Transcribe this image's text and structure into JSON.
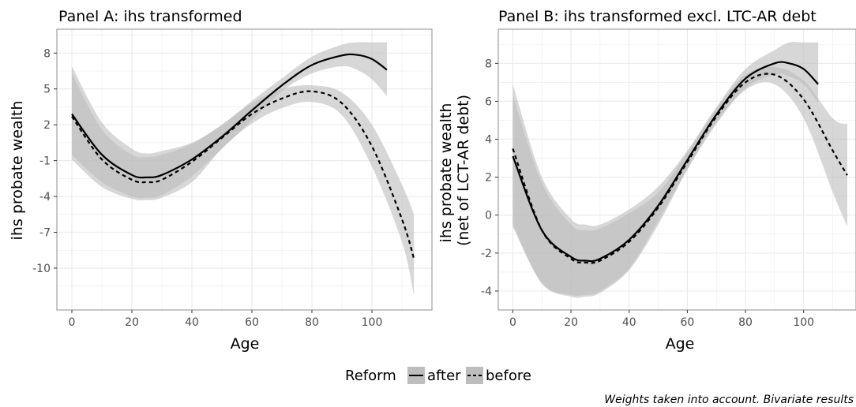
{
  "chart_data": [
    {
      "type": "line",
      "title": "Panel A: ihs transformed",
      "xlabel": "Age",
      "ylabel": "ihs probate wealth",
      "xlim": [
        -5,
        120
      ],
      "ylim": [
        -13.5,
        10
      ],
      "x_ticks": [
        0,
        20,
        40,
        60,
        80,
        100
      ],
      "x_tick_labels": [
        "0",
        "20",
        "40",
        "60",
        "80",
        "100"
      ],
      "y_ticks": [
        8,
        5,
        2,
        -1,
        -4,
        -7,
        -10
      ],
      "y_tick_labels": [
        "8",
        "5",
        "2",
        "-1",
        "-4",
        "-7",
        "-10"
      ],
      "grid": true,
      "series": [
        {
          "name": "after",
          "line_style": "solid",
          "x": [
            0,
            10,
            20,
            25,
            30,
            40,
            50,
            60,
            70,
            80,
            90,
            95,
            100,
            105
          ],
          "y": [
            2.9,
            -0.5,
            -2.2,
            -2.4,
            -2.2,
            -0.9,
            1.0,
            3.2,
            5.3,
            7.0,
            7.8,
            7.85,
            7.5,
            6.6
          ],
          "ci_lower": [
            -0.5,
            -2.8,
            -4.0,
            -4.1,
            -3.9,
            -2.3,
            0.0,
            2.4,
            4.8,
            6.3,
            6.9,
            6.6,
            5.8,
            4.4
          ],
          "ci_upper": [
            6.9,
            2.2,
            0.0,
            -0.4,
            -0.2,
            0.5,
            2.0,
            4.0,
            5.9,
            7.7,
            8.7,
            8.9,
            8.9,
            8.9
          ]
        },
        {
          "name": "before",
          "line_style": "dashed",
          "x": [
            0,
            10,
            20,
            25,
            30,
            40,
            50,
            60,
            70,
            80,
            90,
            100,
            110,
            114
          ],
          "y": [
            2.7,
            -0.9,
            -2.6,
            -2.8,
            -2.6,
            -1.1,
            0.9,
            2.9,
            4.2,
            4.8,
            3.8,
            0.2,
            -5.9,
            -9.2
          ],
          "ci_lower": [
            -0.9,
            -3.2,
            -4.2,
            -4.3,
            -4.1,
            -2.8,
            0.0,
            2.1,
            3.4,
            3.9,
            2.8,
            -1.5,
            -7.8,
            -12.3
          ],
          "ci_upper": [
            6.3,
            1.6,
            -0.5,
            -0.7,
            -0.5,
            0.4,
            2.0,
            3.8,
            5.0,
            5.3,
            4.7,
            2.0,
            -3.0,
            -5.5
          ]
        }
      ]
    },
    {
      "type": "line",
      "title": "Panel B: ihs transformed excl. LTC-AR debt",
      "xlabel": "Age",
      "ylabel": "ihs probate wealth\n(net of LCT-AR debt)",
      "ylabel_lines": [
        "ihs probate wealth",
        "(net of LCT-AR debt)"
      ],
      "xlim": [
        -5,
        118
      ],
      "ylim": [
        -5,
        9.8
      ],
      "x_ticks": [
        0,
        20,
        40,
        60,
        80,
        100
      ],
      "x_tick_labels": [
        "0",
        "20",
        "40",
        "60",
        "80",
        "100"
      ],
      "y_ticks": [
        8,
        6,
        4,
        2,
        0,
        -2,
        -4
      ],
      "y_tick_labels": [
        "8",
        "6",
        "4",
        "2",
        "0",
        "-2",
        "-4"
      ],
      "grid": true,
      "series": [
        {
          "name": "after",
          "line_style": "solid",
          "x": [
            0,
            10,
            20,
            25,
            30,
            40,
            50,
            60,
            70,
            80,
            90,
            95,
            100,
            105
          ],
          "y": [
            3.1,
            -0.8,
            -2.2,
            -2.4,
            -2.3,
            -1.3,
            0.5,
            2.9,
            5.3,
            7.2,
            8.0,
            8.0,
            7.7,
            6.9
          ],
          "ci_lower": [
            -0.5,
            -3.6,
            -4.3,
            -4.3,
            -4.1,
            -2.9,
            -0.5,
            2.4,
            4.9,
            6.7,
            7.4,
            7.3,
            6.9,
            5.9
          ],
          "ci_upper": [
            6.9,
            2.0,
            -0.2,
            -0.5,
            -0.5,
            0.3,
            1.5,
            3.4,
            5.7,
            7.7,
            8.7,
            9.1,
            9.1,
            9.1
          ]
        },
        {
          "name": "before",
          "line_style": "dashed",
          "x": [
            0,
            10,
            20,
            25,
            30,
            40,
            50,
            60,
            70,
            80,
            90,
            100,
            110,
            115
          ],
          "y": [
            3.5,
            -0.8,
            -2.3,
            -2.5,
            -2.4,
            -1.4,
            0.4,
            2.8,
            5.2,
            7.0,
            7.4,
            6.1,
            3.4,
            2.1
          ],
          "ci_lower": [
            -0.6,
            -3.6,
            -4.2,
            -4.2,
            -4.0,
            -2.8,
            -0.3,
            2.4,
            4.8,
            6.6,
            6.9,
            5.1,
            1.2,
            -0.6
          ],
          "ci_upper": [
            6.3,
            1.7,
            -0.5,
            -0.8,
            -0.7,
            0.1,
            1.2,
            3.3,
            5.6,
            7.4,
            7.8,
            7.1,
            5.1,
            4.8
          ]
        }
      ]
    }
  ],
  "legend": {
    "title": "Reform",
    "entries": [
      "after",
      "before"
    ],
    "placement": "bottom"
  },
  "caption": "Weights taken into account. Bivariate results",
  "colors": {
    "panel_border": "#8c8c8c",
    "grid": "#ebebeb",
    "ci_band": "#bdbdbd",
    "line": "#000000"
  }
}
